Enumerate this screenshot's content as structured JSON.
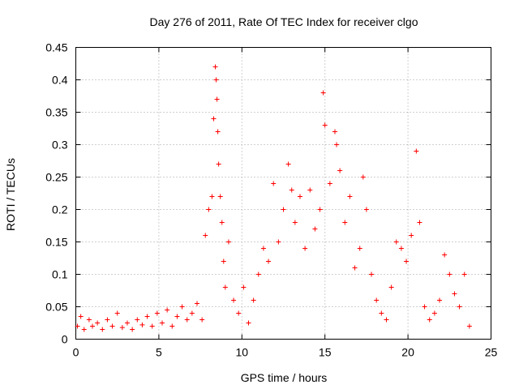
{
  "chart_data": {
    "type": "scatter",
    "title": "Day 276 of 2011, Rate Of TEC Index for receiver clgo",
    "xlabel": "GPS time / hours",
    "ylabel": "ROTI / TECUs",
    "xlim": [
      0,
      25
    ],
    "ylim": [
      0,
      0.45
    ],
    "x_ticks": [
      0,
      5,
      10,
      15,
      20,
      25
    ],
    "y_ticks": [
      0,
      0.05,
      0.1,
      0.15,
      0.2,
      0.25,
      0.3,
      0.35,
      0.4,
      0.45
    ],
    "x_tick_labels": [
      "0",
      "5",
      "10",
      "15",
      "20",
      "25"
    ],
    "y_tick_labels": [
      "0",
      "0.05",
      "0.1",
      "0.15",
      "0.2",
      "0.25",
      "0.3",
      "0.35",
      "0.4",
      "0.45"
    ],
    "grid": true,
    "marker": "+",
    "color": "#ff0000",
    "series": [
      {
        "name": "ROTI",
        "points": [
          [
            0.1,
            0.02
          ],
          [
            0.3,
            0.035
          ],
          [
            0.5,
            0.015
          ],
          [
            0.8,
            0.03
          ],
          [
            1.0,
            0.02
          ],
          [
            1.3,
            0.025
          ],
          [
            1.6,
            0.015
          ],
          [
            1.9,
            0.03
          ],
          [
            2.2,
            0.02
          ],
          [
            2.5,
            0.04
          ],
          [
            2.8,
            0.018
          ],
          [
            3.1,
            0.025
          ],
          [
            3.4,
            0.015
          ],
          [
            3.7,
            0.03
          ],
          [
            4.0,
            0.022
          ],
          [
            4.3,
            0.035
          ],
          [
            4.6,
            0.02
          ],
          [
            4.9,
            0.04
          ],
          [
            5.2,
            0.025
          ],
          [
            5.5,
            0.045
          ],
          [
            5.8,
            0.02
          ],
          [
            6.1,
            0.035
          ],
          [
            6.4,
            0.05
          ],
          [
            6.7,
            0.03
          ],
          [
            7.0,
            0.04
          ],
          [
            7.3,
            0.055
          ],
          [
            7.6,
            0.03
          ],
          [
            7.8,
            0.16
          ],
          [
            8.0,
            0.2
          ],
          [
            8.2,
            0.22
          ],
          [
            8.3,
            0.34
          ],
          [
            8.4,
            0.42
          ],
          [
            8.45,
            0.4
          ],
          [
            8.5,
            0.37
          ],
          [
            8.55,
            0.32
          ],
          [
            8.6,
            0.27
          ],
          [
            8.7,
            0.22
          ],
          [
            8.8,
            0.18
          ],
          [
            8.9,
            0.12
          ],
          [
            9.0,
            0.08
          ],
          [
            9.2,
            0.15
          ],
          [
            9.5,
            0.06
          ],
          [
            9.8,
            0.04
          ],
          [
            10.1,
            0.08
          ],
          [
            10.4,
            0.025
          ],
          [
            10.7,
            0.06
          ],
          [
            11.0,
            0.1
          ],
          [
            11.3,
            0.14
          ],
          [
            11.6,
            0.12
          ],
          [
            11.9,
            0.24
          ],
          [
            12.2,
            0.15
          ],
          [
            12.5,
            0.2
          ],
          [
            12.8,
            0.27
          ],
          [
            13.0,
            0.23
          ],
          [
            13.2,
            0.18
          ],
          [
            13.5,
            0.22
          ],
          [
            13.8,
            0.14
          ],
          [
            14.1,
            0.23
          ],
          [
            14.4,
            0.17
          ],
          [
            14.7,
            0.2
          ],
          [
            14.9,
            0.38
          ],
          [
            15.0,
            0.33
          ],
          [
            15.3,
            0.24
          ],
          [
            15.6,
            0.32
          ],
          [
            15.7,
            0.3
          ],
          [
            15.9,
            0.26
          ],
          [
            16.2,
            0.18
          ],
          [
            16.5,
            0.22
          ],
          [
            16.8,
            0.11
          ],
          [
            17.1,
            0.14
          ],
          [
            17.3,
            0.25
          ],
          [
            17.5,
            0.2
          ],
          [
            17.8,
            0.1
          ],
          [
            18.1,
            0.06
          ],
          [
            18.4,
            0.04
          ],
          [
            18.7,
            0.03
          ],
          [
            19.0,
            0.08
          ],
          [
            19.3,
            0.15
          ],
          [
            19.6,
            0.14
          ],
          [
            19.9,
            0.12
          ],
          [
            20.2,
            0.16
          ],
          [
            20.5,
            0.29
          ],
          [
            20.7,
            0.18
          ],
          [
            21.0,
            0.05
          ],
          [
            21.3,
            0.03
          ],
          [
            21.6,
            0.04
          ],
          [
            21.9,
            0.06
          ],
          [
            22.2,
            0.13
          ],
          [
            22.5,
            0.1
          ],
          [
            22.8,
            0.07
          ],
          [
            23.1,
            0.05
          ],
          [
            23.4,
            0.1
          ],
          [
            23.7,
            0.02
          ]
        ]
      }
    ]
  }
}
